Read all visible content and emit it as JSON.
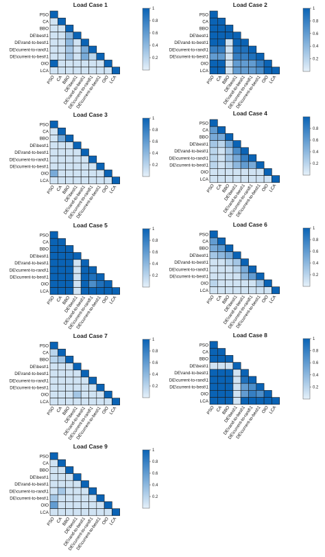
{
  "figure": {
    "background": "#ffffff",
    "colormap": {
      "low": "#e6f1fa",
      "high": "#0a63b5"
    }
  },
  "chart_data": [
    {
      "type": "heatmap",
      "title": "Load Case 1",
      "rows": [
        "PSO",
        "CA",
        "BBO",
        "DE\\best\\1",
        "DE\\rand-to-best\\1",
        "DE\\current-to-rand\\1",
        "DE\\current-to-best\\1",
        "OIO",
        "LCA"
      ],
      "cols": [
        "PSO",
        "CA",
        "BBO",
        "DE\\best\\1",
        "DE\\rand-to-best\\1",
        "DE\\current-to-rand\\1",
        "DE\\current-to-best\\1",
        "OIO",
        "LCA"
      ],
      "colorbar": {
        "min": 0,
        "max": 1,
        "ticks": [
          "1",
          "0.8",
          "0.6",
          "0.4",
          "0.2"
        ]
      },
      "values": [
        [
          1
        ],
        [
          0.1,
          1
        ],
        [
          0.1,
          0.1,
          1
        ],
        [
          0.1,
          0.1,
          0.4,
          1
        ],
        [
          0.1,
          0.1,
          0.4,
          0.1,
          1
        ],
        [
          0.1,
          0.1,
          0.3,
          0.1,
          0.5,
          1
        ],
        [
          0.1,
          0.1,
          0.3,
          0.1,
          0.5,
          0.2,
          1
        ],
        [
          1,
          0.1,
          0.1,
          0.1,
          0.1,
          0.1,
          0.1,
          1
        ],
        [
          0.1,
          0.1,
          0.1,
          0.1,
          0.1,
          0.1,
          0.1,
          0.1,
          1
        ]
      ]
    },
    {
      "type": "heatmap",
      "title": "Load Case 2",
      "rows": [
        "PSO",
        "CA",
        "BBO",
        "DE\\best\\1",
        "DE\\rand-to-best\\1",
        "DE\\current-to-rand\\1",
        "DE\\current-to-best\\1",
        "OIO",
        "LCA"
      ],
      "cols": [
        "PSO",
        "CA",
        "BBO",
        "DE\\best\\1",
        "DE\\rand-to-best\\1",
        "DE\\current-to-rand\\1",
        "DE\\current-to-best\\1",
        "OIO",
        "LCA"
      ],
      "colorbar": {
        "min": 0,
        "max": 1,
        "ticks": [
          "1",
          "0.8",
          "0.6",
          "0.4",
          "0.2"
        ]
      },
      "values": [
        [
          1
        ],
        [
          1,
          1
        ],
        [
          1,
          1,
          1
        ],
        [
          1,
          1,
          1,
          1
        ],
        [
          1,
          1,
          0.1,
          1,
          1
        ],
        [
          0.8,
          0.8,
          0.1,
          0.9,
          0.9,
          1
        ],
        [
          0.6,
          0.6,
          0.1,
          0.8,
          0.8,
          0.9,
          1
        ],
        [
          1,
          1,
          0.1,
          0.6,
          0.6,
          0.6,
          0.8,
          1
        ],
        [
          1,
          1,
          0.1,
          0.6,
          0.6,
          0.6,
          0.7,
          1,
          1
        ]
      ]
    },
    {
      "type": "heatmap",
      "title": "Load Case 3",
      "rows": [
        "PSO",
        "CA",
        "BBO",
        "DE\\best\\1",
        "DE\\rand-to-best\\1",
        "DE\\current-to-rand\\1",
        "DE\\current-to-best\\1",
        "OIO",
        "LCA"
      ],
      "cols": [
        "PSO",
        "CA",
        "BBO",
        "DE\\best\\1",
        "DE\\rand-to-best\\1",
        "DE\\current-to-rand\\1",
        "DE\\current-to-best\\1",
        "OIO",
        "LCA"
      ],
      "colorbar": {
        "min": 0,
        "max": 1,
        "ticks": [
          "1",
          "0.8",
          "0.6",
          "0.4",
          "0.2"
        ]
      },
      "values": [
        [
          1
        ],
        [
          0.1,
          1
        ],
        [
          0.1,
          0.5,
          1
        ],
        [
          0.1,
          0.1,
          0.1,
          1
        ],
        [
          0.1,
          0.1,
          0.1,
          0.1,
          1
        ],
        [
          0.1,
          0.1,
          0.1,
          0.1,
          0.1,
          1
        ],
        [
          0.1,
          0.1,
          0.1,
          0.1,
          0.1,
          0.1,
          1
        ],
        [
          0.5,
          0.1,
          0.1,
          0.1,
          0.1,
          0.1,
          0.1,
          1
        ],
        [
          0.1,
          0.1,
          0.1,
          0.1,
          0.1,
          0.1,
          0.1,
          0.1,
          1
        ]
      ]
    },
    {
      "type": "heatmap",
      "title": "Load Case 4",
      "rows": [
        "PSO",
        "CA",
        "BBO",
        "DE\\best\\1",
        "DE\\rand-to-best\\1",
        "DE\\current-to-rand\\1",
        "DE\\current-to-best\\1",
        "OIO",
        "LCA"
      ],
      "cols": [
        "PSO",
        "CA",
        "BBO",
        "DE\\best\\1",
        "DE\\rand-to-best\\1",
        "DE\\current-to-rand\\1",
        "DE\\current-to-best\\1",
        "OIO",
        "LCA"
      ],
      "colorbar": {
        "min": 0,
        "max": 1,
        "ticks": [
          "0.8",
          "0.6",
          "0.4",
          "0.2"
        ]
      },
      "values": [
        [
          1
        ],
        [
          0.6,
          1
        ],
        [
          0.5,
          0.5,
          1
        ],
        [
          0.3,
          0.2,
          0.5,
          1
        ],
        [
          0.2,
          0.1,
          0.3,
          0.7,
          1
        ],
        [
          0.2,
          0.1,
          0.3,
          0.5,
          0.8,
          1
        ],
        [
          0.2,
          0.1,
          0.2,
          0.4,
          0.6,
          0.5,
          1
        ],
        [
          0.1,
          0.1,
          0.1,
          0.1,
          0.1,
          0.1,
          0.1,
          1
        ],
        [
          0.1,
          0.1,
          0.1,
          0.1,
          0.1,
          0.1,
          0.1,
          0.1,
          1
        ]
      ]
    },
    {
      "type": "heatmap",
      "title": "Load Case 5",
      "rows": [
        "PSO",
        "CA",
        "BBO",
        "DE\\best\\1",
        "DE\\rand-to-best\\1",
        "DE\\current-to-rand\\1",
        "DE\\current-to-best\\1",
        "OIO",
        "LCA"
      ],
      "cols": [
        "PSO",
        "CA",
        "BBO",
        "DE\\best\\1",
        "DE\\rand-to-best\\1",
        "DE\\current-to-rand\\1",
        "DE\\current-to-best\\1",
        "OIO",
        "LCA"
      ],
      "colorbar": {
        "min": 0,
        "max": 1,
        "ticks": [
          "1",
          "0.8",
          "0.6",
          "0.4",
          "0.2"
        ]
      },
      "values": [
        [
          1
        ],
        [
          1,
          1
        ],
        [
          1,
          1,
          1
        ],
        [
          1,
          1,
          1,
          1
        ],
        [
          1,
          1,
          1,
          0.1,
          1
        ],
        [
          1,
          1,
          1,
          0.1,
          1,
          1
        ],
        [
          1,
          1,
          1,
          0.1,
          1,
          0.9,
          1
        ],
        [
          1,
          1,
          1,
          0.1,
          1,
          0.7,
          0.9,
          1
        ],
        [
          1,
          1,
          1,
          0.1,
          1,
          1,
          1,
          1,
          1
        ]
      ]
    },
    {
      "type": "heatmap",
      "title": "Load Case 6",
      "rows": [
        "PSO",
        "CA",
        "BBO",
        "DE\\best\\1",
        "DE\\rand-to-best\\1",
        "DE\\current-to-rand\\1",
        "DE\\current-to-best\\1",
        "OIO",
        "LCA"
      ],
      "cols": [
        "PSO",
        "CA",
        "BBO",
        "DE\\best\\1",
        "DE\\rand-to-best\\1",
        "DE\\current-to-rand\\1",
        "DE\\current-to-best\\1",
        "OIO",
        "LCA"
      ],
      "colorbar": {
        "min": 0,
        "max": 1,
        "ticks": [
          "1",
          "0.8",
          "0.6",
          "0.4",
          "0.2"
        ]
      },
      "values": [
        [
          1
        ],
        [
          0.6,
          1
        ],
        [
          0.5,
          0.6,
          1
        ],
        [
          0.3,
          0.4,
          0.5,
          1
        ],
        [
          0.1,
          0.1,
          0.2,
          0.3,
          1
        ],
        [
          0.1,
          0.1,
          0.1,
          0.2,
          0.5,
          1
        ],
        [
          0.1,
          0.1,
          0.1,
          0.1,
          0.4,
          0.6,
          1
        ],
        [
          0.2,
          0.1,
          0.1,
          0.1,
          0.1,
          0.1,
          0.3,
          1
        ],
        [
          0.1,
          0.1,
          0.1,
          0.1,
          0.1,
          0.1,
          0.1,
          0.1,
          1
        ]
      ]
    },
    {
      "type": "heatmap",
      "title": "Load Case 7",
      "rows": [
        "PSO",
        "CA",
        "BBO",
        "DE\\best\\1",
        "DE\\rand-to-best\\1",
        "DE\\current-to-rand\\1",
        "DE\\current-to-best\\1",
        "OIO",
        "LCA"
      ],
      "cols": [
        "PSO",
        "CA",
        "BBO",
        "DE\\best\\1",
        "DE\\rand-to-best\\1",
        "DE\\current-to-rand\\1",
        "DE\\current-to-best\\1",
        "OIO",
        "LCA"
      ],
      "colorbar": {
        "min": 0,
        "max": 1,
        "ticks": [
          "1",
          "0.8",
          "0.6",
          "0.4",
          "0.2"
        ]
      },
      "values": [
        [
          1
        ],
        [
          0.2,
          1
        ],
        [
          0.2,
          0.3,
          1
        ],
        [
          0.1,
          0.1,
          0.1,
          1
        ],
        [
          0.1,
          0.1,
          0.1,
          0.1,
          1
        ],
        [
          0.1,
          0.1,
          0.1,
          0.1,
          0.1,
          1
        ],
        [
          0.1,
          0.1,
          0.1,
          0.1,
          0.1,
          0.1,
          1
        ],
        [
          0.1,
          0.1,
          0.1,
          0.3,
          0.1,
          0.1,
          0.1,
          1
        ],
        [
          0.1,
          0.1,
          0.1,
          0.1,
          0.1,
          0.1,
          0.1,
          0.1,
          1
        ]
      ]
    },
    {
      "type": "heatmap",
      "title": "Load Case 8",
      "rows": [
        "PSO",
        "CA",
        "BBO",
        "DE\\best\\1",
        "DE\\rand-to-best\\1",
        "DE\\current-to-rand\\1",
        "DE\\current-to-best\\1",
        "OIO",
        "LCA"
      ],
      "cols": [
        "PSO",
        "CA",
        "BBO",
        "DE\\best\\1",
        "DE\\rand-to-best\\1",
        "DE\\current-to-rand\\1",
        "DE\\current-to-best\\1",
        "OIO",
        "LCA"
      ],
      "colorbar": {
        "min": 0,
        "max": 1,
        "ticks": [
          "1",
          "0.8",
          "0.6",
          "0.4",
          "0.2"
        ]
      },
      "values": [
        [
          1
        ],
        [
          1,
          1
        ],
        [
          1,
          1,
          1
        ],
        [
          0.1,
          0.1,
          0.1,
          1
        ],
        [
          1,
          1,
          1,
          0.1,
          1
        ],
        [
          1,
          1,
          1,
          0.1,
          0.9,
          1
        ],
        [
          1,
          1,
          1,
          0.1,
          0.6,
          0.7,
          1
        ],
        [
          1,
          1,
          1,
          0.1,
          0.6,
          0.8,
          0.7,
          1
        ],
        [
          1,
          1,
          1,
          0.1,
          1,
          1,
          1,
          1,
          1
        ]
      ]
    },
    {
      "type": "heatmap",
      "title": "Load Case 9",
      "rows": [
        "PSO",
        "CA",
        "BBO",
        "DE\\best\\1",
        "DE\\rand-to-best\\1",
        "DE\\current-to-rand\\1",
        "DE\\current-to-best\\1",
        "OIO",
        "LCA"
      ],
      "cols": [
        "PSO",
        "CA",
        "BBO",
        "DE\\best\\1",
        "DE\\rand-to-best\\1",
        "DE\\current-to-rand\\1",
        "DE\\current-to-best\\1",
        "OIO",
        "LCA"
      ],
      "colorbar": {
        "min": 0,
        "max": 1,
        "ticks": [
          "1",
          "0.8",
          "0.6",
          "0.4",
          "0.2"
        ]
      },
      "values": [
        [
          1
        ],
        [
          0.1,
          1
        ],
        [
          0.1,
          0.1,
          1
        ],
        [
          0.1,
          0.1,
          0.1,
          1
        ],
        [
          0.1,
          0.1,
          0.1,
          0.1,
          1
        ],
        [
          0.1,
          0.3,
          0.1,
          0.1,
          0.1,
          1
        ],
        [
          0.3,
          0.1,
          0.1,
          0.1,
          0.1,
          0.1,
          1
        ],
        [
          0.6,
          0.1,
          0.1,
          0.1,
          0.1,
          0.1,
          0.1,
          1
        ],
        [
          0.1,
          0.1,
          0.1,
          0.1,
          0.1,
          0.1,
          0.1,
          0.1,
          1
        ]
      ]
    }
  ]
}
